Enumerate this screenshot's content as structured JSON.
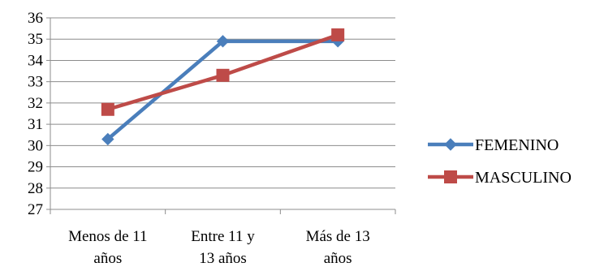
{
  "chart_data": {
    "type": "line",
    "categories": [
      [
        "Menos de 11",
        "años"
      ],
      [
        "Entre 11 y",
        "13 años"
      ],
      [
        "Más de 13",
        "años"
      ]
    ],
    "series": [
      {
        "name": "FEMENINO",
        "values": [
          30.3,
          34.9,
          34.9
        ],
        "color": "#4a7ebb",
        "marker": "diamond"
      },
      {
        "name": "MASCULINO",
        "values": [
          31.7,
          33.3,
          35.2
        ],
        "color": "#be4b48",
        "marker": "square"
      }
    ],
    "ylim": [
      27,
      36
    ],
    "yticks": [
      27,
      28,
      29,
      30,
      31,
      32,
      33,
      34,
      35,
      36
    ],
    "grid": true,
    "legend": "right",
    "title": "",
    "xlabel": "",
    "ylabel": ""
  }
}
